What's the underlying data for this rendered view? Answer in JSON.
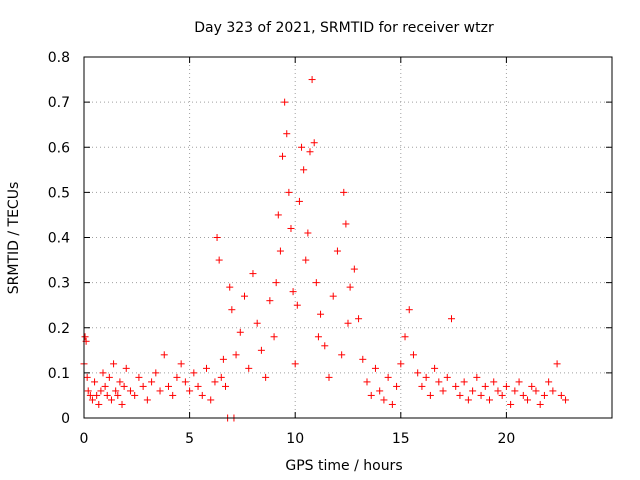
{
  "chart_data": {
    "type": "scatter",
    "title": "Day 323 of 2021, SRMTID for receiver wtzr",
    "xlabel": "GPS time / hours",
    "ylabel": "SRMTID / TECUs",
    "xlim": [
      0,
      25
    ],
    "ylim": [
      0,
      0.8
    ],
    "xticks": [
      0,
      5,
      10,
      15,
      20
    ],
    "yticks": [
      0,
      0.1,
      0.2,
      0.3,
      0.4,
      0.5,
      0.6,
      0.7,
      0.8
    ],
    "xtick_labels": [
      "0",
      "5",
      "10",
      "15",
      "20"
    ],
    "ytick_labels": [
      "0",
      "0.1",
      "0.2",
      "0.3",
      "0.4",
      "0.5",
      "0.6",
      "0.7",
      "0.8"
    ],
    "grid": true,
    "marker": "+",
    "color": "#ff0000",
    "series": [
      {
        "name": "SRMTID",
        "x": [
          0.0,
          0.05,
          0.1,
          0.15,
          0.2,
          0.3,
          0.4,
          0.5,
          0.6,
          0.7,
          0.8,
          0.9,
          1.0,
          1.1,
          1.2,
          1.3,
          1.4,
          1.5,
          1.6,
          1.7,
          1.8,
          1.9,
          2.0,
          2.2,
          2.4,
          2.6,
          2.8,
          3.0,
          3.2,
          3.4,
          3.6,
          3.8,
          4.0,
          4.2,
          4.4,
          4.6,
          4.8,
          5.0,
          5.2,
          5.4,
          5.6,
          5.8,
          6.0,
          6.2,
          6.3,
          6.4,
          6.5,
          6.6,
          6.7,
          6.8,
          6.9,
          7.0,
          7.1,
          7.2,
          7.4,
          7.6,
          7.8,
          8.0,
          8.2,
          8.4,
          8.6,
          8.8,
          9.0,
          9.1,
          9.2,
          9.3,
          9.4,
          9.5,
          9.6,
          9.7,
          9.8,
          9.9,
          10.0,
          10.1,
          10.2,
          10.3,
          10.4,
          10.5,
          10.6,
          10.7,
          10.8,
          10.9,
          11.0,
          11.1,
          11.2,
          11.4,
          11.6,
          11.8,
          12.0,
          12.2,
          12.3,
          12.4,
          12.5,
          12.6,
          12.8,
          13.0,
          13.2,
          13.4,
          13.6,
          13.8,
          14.0,
          14.2,
          14.4,
          14.6,
          14.8,
          15.0,
          15.2,
          15.4,
          15.6,
          15.8,
          16.0,
          16.2,
          16.4,
          16.6,
          16.8,
          17.0,
          17.2,
          17.4,
          17.6,
          17.8,
          18.0,
          18.2,
          18.4,
          18.6,
          18.8,
          19.0,
          19.2,
          19.4,
          19.6,
          19.8,
          20.0,
          20.2,
          20.4,
          20.6,
          20.8,
          21.0,
          21.2,
          21.4,
          21.6,
          21.8,
          22.0,
          22.2,
          22.4,
          22.6,
          22.8
        ],
        "y": [
          0.12,
          0.18,
          0.17,
          0.09,
          0.06,
          0.05,
          0.04,
          0.08,
          0.05,
          0.03,
          0.06,
          0.1,
          0.07,
          0.05,
          0.09,
          0.04,
          0.12,
          0.06,
          0.05,
          0.08,
          0.03,
          0.07,
          0.11,
          0.06,
          0.05,
          0.09,
          0.07,
          0.04,
          0.08,
          0.1,
          0.06,
          0.14,
          0.07,
          0.05,
          0.09,
          0.12,
          0.08,
          0.06,
          0.1,
          0.07,
          0.05,
          0.11,
          0.04,
          0.08,
          0.4,
          0.35,
          0.09,
          0.13,
          0.07,
          0.0,
          0.29,
          0.24,
          0.0,
          0.14,
          0.19,
          0.27,
          0.11,
          0.32,
          0.21,
          0.15,
          0.09,
          0.26,
          0.18,
          0.3,
          0.45,
          0.37,
          0.58,
          0.7,
          0.63,
          0.5,
          0.42,
          0.28,
          0.12,
          0.25,
          0.48,
          0.6,
          0.55,
          0.35,
          0.41,
          0.59,
          0.75,
          0.61,
          0.3,
          0.18,
          0.23,
          0.16,
          0.09,
          0.27,
          0.37,
          0.14,
          0.5,
          0.43,
          0.21,
          0.29,
          0.33,
          0.22,
          0.13,
          0.08,
          0.05,
          0.11,
          0.06,
          0.04,
          0.09,
          0.03,
          0.07,
          0.12,
          0.18,
          0.24,
          0.14,
          0.1,
          0.07,
          0.09,
          0.05,
          0.11,
          0.08,
          0.06,
          0.09,
          0.22,
          0.07,
          0.05,
          0.08,
          0.04,
          0.06,
          0.09,
          0.05,
          0.07,
          0.04,
          0.08,
          0.06,
          0.05,
          0.07,
          0.03,
          0.06,
          0.08,
          0.05,
          0.04,
          0.07,
          0.06,
          0.03,
          0.05,
          0.08,
          0.06,
          0.12,
          0.05,
          0.04
        ]
      }
    ]
  }
}
